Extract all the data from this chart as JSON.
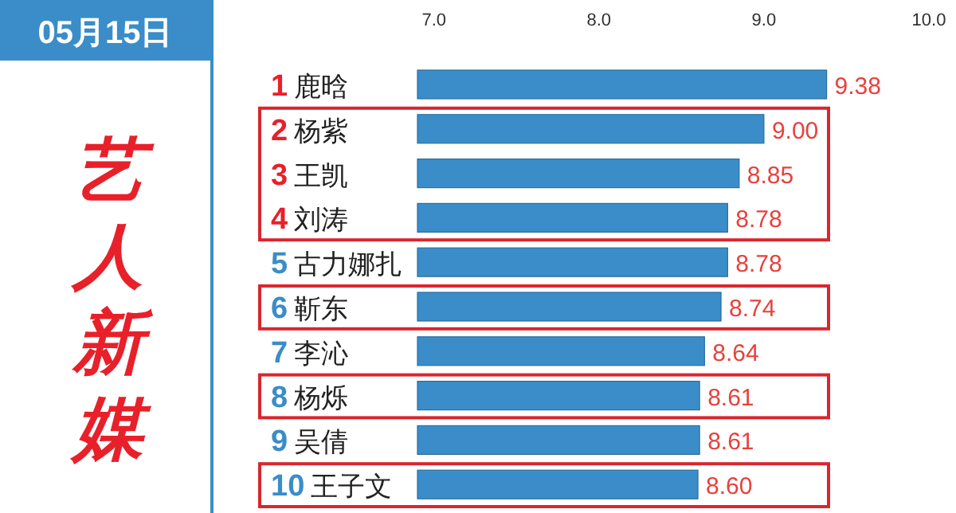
{
  "chart_data": {
    "type": "bar",
    "orientation": "horizontal",
    "title": "05月15日",
    "subtitle": "艺人新媒",
    "categories": [
      "1 鹿晗",
      "2 杨紫",
      "3 王凯",
      "4 刘涛",
      "5 古力娜扎",
      "6 靳东",
      "7 李沁",
      "8 杨烁",
      "9 吴倩",
      "10 王子文"
    ],
    "values": [
      9.38,
      9.0,
      8.85,
      8.78,
      8.78,
      8.74,
      8.64,
      8.61,
      8.61,
      8.6
    ],
    "value_labels": [
      "9.38",
      "9.00",
      "8.85",
      "8.78",
      "8.78",
      "8.74",
      "8.64",
      "8.61",
      "8.61",
      "8.60"
    ],
    "color": "#3a8dc8",
    "xlim": [
      6.9,
      10
    ],
    "xticks": [
      {
        "value": 7,
        "label": "7.0"
      },
      {
        "value": 8,
        "label": "8.0"
      },
      {
        "value": 9,
        "label": "9.0"
      },
      {
        "value": 10,
        "label": "10.0"
      }
    ],
    "grid": false
  }
}
